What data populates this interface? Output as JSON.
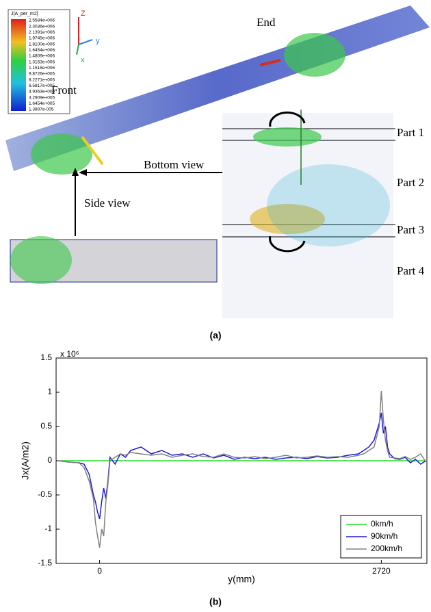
{
  "figure_a": {
    "caption": "(a)",
    "colorbar": {
      "title": "J[A_per_m2]",
      "labels": [
        "2.5584e+006",
        "2.3036e+006",
        "2.1391e+006",
        "1.9745e+006",
        "1.8100e+006",
        "1.6454e+006",
        "1.4809e+006",
        "1.3163e+006",
        "1.1518e+006",
        "9.8726e+005",
        "8.2271e+005",
        "6.5817e+005",
        "4.9363e+005",
        "3.2909e+005",
        "1.6454e+005",
        "1.3897e-005"
      ]
    },
    "axes": {
      "z": "Z",
      "y": "y",
      "x": "x"
    },
    "labels": {
      "end": "End",
      "front": "Front",
      "bottom_view": "Bottom view",
      "side_view": "Side view"
    },
    "parts": [
      "Part 1",
      "Part 2",
      "Part 3",
      "Part 4"
    ]
  },
  "chart_data": {
    "type": "line",
    "caption": "(b)",
    "exponent_label": "x 10⁶",
    "x_label": "y(mm)",
    "y_label": "Jx(A/m2)",
    "xlim": [
      -420,
      3160
    ],
    "xticks": [
      0,
      2720
    ],
    "ylim": [
      -1.5,
      1.5
    ],
    "yticks": [
      1.5,
      1,
      0.5,
      0,
      -0.5,
      -1,
      -1.5
    ],
    "legend": "lower right",
    "x": [
      -400,
      -300,
      -200,
      -150,
      -100,
      -60,
      -40,
      -20,
      0,
      20,
      40,
      60,
      80,
      100,
      150,
      200,
      250,
      300,
      400,
      500,
      600,
      700,
      800,
      900,
      1000,
      1100,
      1200,
      1300,
      1400,
      1500,
      1600,
      1700,
      1800,
      1900,
      2000,
      2100,
      2200,
      2300,
      2400,
      2500,
      2550,
      2600,
      2650,
      2700,
      2720,
      2740,
      2760,
      2780,
      2800,
      2850,
      2900,
      2950,
      3000,
      3050,
      3100,
      3150
    ],
    "series": [
      {
        "name": "0km/h",
        "color": "#22dd22",
        "values": [
          0,
          0,
          0,
          0,
          0,
          0,
          0,
          0,
          0,
          0,
          0,
          0,
          0,
          0,
          0,
          0,
          0,
          0,
          0,
          0,
          0,
          0,
          0,
          0,
          0,
          0,
          0,
          0,
          0,
          0,
          0,
          0,
          0,
          0,
          0,
          0,
          0,
          0,
          0,
          0,
          0,
          0,
          0,
          0,
          0,
          0,
          0,
          0,
          0,
          0,
          0,
          0,
          0,
          0,
          0,
          0
        ]
      },
      {
        "name": "90km/h",
        "color": "#1a1add",
        "values": [
          0,
          -0.02,
          -0.03,
          -0.05,
          -0.2,
          -0.5,
          -0.6,
          -0.75,
          -0.85,
          -0.6,
          -0.4,
          -0.55,
          -0.3,
          0.05,
          -0.05,
          0.1,
          0.05,
          0.15,
          0.2,
          0.1,
          0.15,
          0.08,
          0.1,
          0.05,
          0.1,
          0.04,
          0.08,
          0.02,
          0.05,
          0.03,
          0.05,
          0.02,
          0.04,
          0.05,
          0.03,
          0.06,
          0.04,
          0.05,
          0.08,
          0.1,
          0.15,
          0.2,
          0.3,
          0.55,
          0.7,
          0.4,
          0.5,
          0.2,
          0.1,
          0.03,
          0.02,
          0.05,
          -0.03,
          0.02,
          -0.05,
          0
        ]
      },
      {
        "name": "200km/h",
        "color": "#808080",
        "values": [
          0,
          -0.02,
          -0.03,
          -0.1,
          -0.3,
          -0.55,
          -0.9,
          -1.1,
          -1.27,
          -1,
          -1.1,
          -0.6,
          -0.35,
          0,
          0.05,
          0.1,
          0.08,
          0.12,
          0.1,
          0.08,
          0.1,
          0.05,
          0.08,
          0.1,
          0.06,
          0.05,
          0.1,
          0.05,
          0.04,
          0.06,
          0.03,
          0.05,
          0.08,
          0.04,
          0.05,
          0.07,
          0.05,
          0.06,
          0.05,
          0.08,
          0.1,
          0.15,
          0.2,
          0.5,
          1.02,
          0.6,
          0.3,
          0.15,
          0.05,
          0.04,
          0.03,
          0.06,
          0.02,
          0.05,
          0.1,
          -0.02
        ]
      }
    ]
  }
}
